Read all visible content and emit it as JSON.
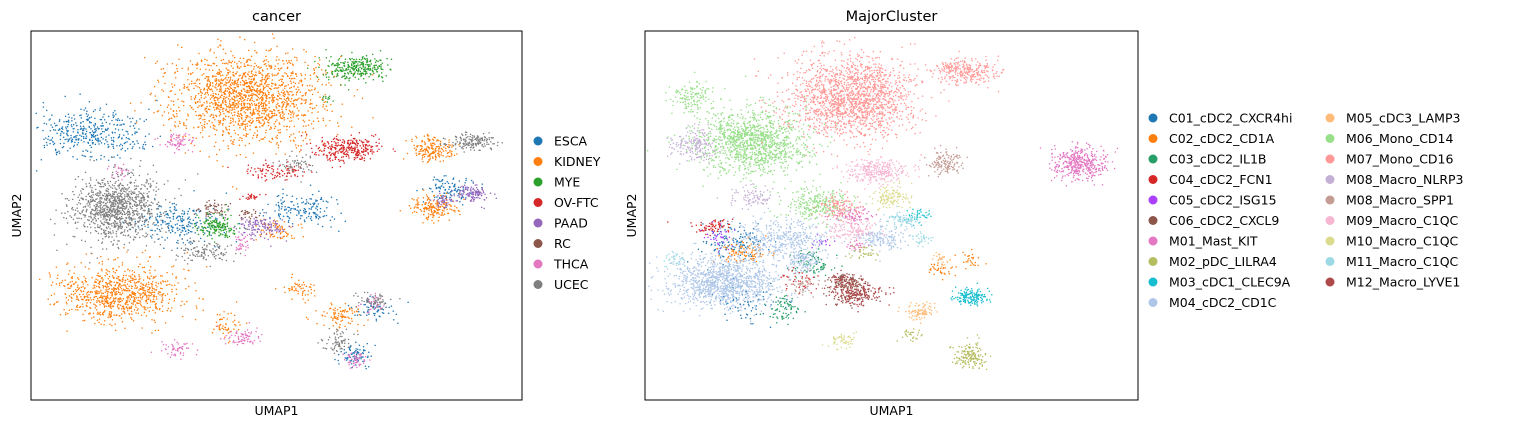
{
  "chart_data": [
    {
      "type": "scatter",
      "title": "cancer",
      "xlabel": "UMAP1",
      "ylabel": "UMAP2",
      "xlim": [
        0,
        100
      ],
      "ylim": [
        0,
        100
      ],
      "grid": false,
      "legend_position": "right",
      "legend_columns": 1,
      "series": [
        {
          "name": "ESCA",
          "color": "#1f77b4",
          "blobs": [
            [
              12,
              72,
              10,
              6,
              900
            ],
            [
              30,
              48,
              8,
              5,
              500
            ],
            [
              85,
              57,
              4,
              3,
              250
            ],
            [
              66,
              12,
              3,
              3,
              180
            ],
            [
              56,
              52,
              6,
              4,
              350
            ],
            [
              70,
              25,
              4,
              3,
              150
            ]
          ]
        },
        {
          "name": "KIDNEY",
          "color": "#ff7f0e",
          "blobs": [
            [
              44,
              82,
              14,
              11,
              3600
            ],
            [
              18,
              29,
              11,
              7,
              1900
            ],
            [
              82,
              52,
              4,
              3,
              380
            ],
            [
              82,
              68,
              4,
              3,
              400
            ],
            [
              50,
              46,
              4,
              3,
              150
            ],
            [
              55,
              30,
              3,
              3,
              120
            ],
            [
              63,
              23,
              4,
              3,
              200
            ],
            [
              40,
              20,
              3,
              3,
              120
            ]
          ]
        },
        {
          "name": "MYE",
          "color": "#2ca02c",
          "blobs": [
            [
              66,
              90,
              6,
              3,
              650
            ],
            [
              38,
              47,
              4,
              3,
              380
            ],
            [
              60,
              82,
              1,
              1,
              25
            ]
          ]
        },
        {
          "name": "OV-FTC",
          "color": "#d62728",
          "blobs": [
            [
              64,
              68,
              6,
              3,
              650
            ],
            [
              50,
              62,
              6,
              2,
              220
            ],
            [
              45,
              55,
              2,
              1,
              60
            ]
          ]
        },
        {
          "name": "PAAD",
          "color": "#9467bd",
          "blobs": [
            [
              90,
              56,
              3,
              2,
              250
            ],
            [
              47,
              47,
              5,
              3,
              300
            ],
            [
              84,
              54,
              2,
              2,
              90
            ]
          ]
        },
        {
          "name": "RC",
          "color": "#8c564b",
          "blobs": [
            [
              37,
              52,
              3,
              2,
              120
            ],
            [
              44,
              50,
              2,
              2,
              60
            ]
          ]
        },
        {
          "name": "THCA",
          "color": "#e377c2",
          "blobs": [
            [
              30,
              70,
              3,
              2,
              160
            ],
            [
              43,
              17,
              3,
              2,
              160
            ],
            [
              66,
              11,
              2,
              2,
              120
            ],
            [
              70,
              26,
              2,
              2,
              80
            ],
            [
              30,
              14,
              3,
              2,
              120
            ],
            [
              43,
              42,
              2,
              3,
              80
            ],
            [
              18,
              62,
              2,
              2,
              60
            ]
          ]
        },
        {
          "name": "UCEC",
          "color": "#7f7f7f",
          "blobs": [
            [
              17,
              52,
              8,
              8,
              2300
            ],
            [
              90,
              70,
              4,
              2,
              350
            ],
            [
              70,
              27,
              3,
              2,
              120
            ],
            [
              35,
              40,
              5,
              3,
              250
            ],
            [
              54,
              64,
              3,
              2,
              120
            ],
            [
              62,
              16,
              3,
              3,
              150
            ]
          ]
        }
      ]
    },
    {
      "type": "scatter",
      "title": "MajorCluster",
      "xlabel": "UMAP1",
      "ylabel": "UMAP2",
      "xlim": [
        0,
        100
      ],
      "ylim": [
        0,
        100
      ],
      "grid": false,
      "legend_position": "right",
      "legend_columns": 2,
      "series": [
        {
          "name": "C01_cDC2_CXCR4hi",
          "color": "#1f77b4",
          "blobs": [
            [
              18,
              43,
              6,
              4,
              300
            ],
            [
              21,
              26,
              6,
              4,
              150
            ]
          ]
        },
        {
          "name": "C02_cDC2_CD1A",
          "color": "#ff7f0e",
          "blobs": [
            [
              20,
              40,
              5,
              3,
              200
            ],
            [
              60,
              35,
              3,
              2,
              80
            ],
            [
              66,
              38,
              2,
              2,
              60
            ]
          ]
        },
        {
          "name": "C03_cDC2_IL1B",
          "color": "#279e68",
          "blobs": [
            [
              28,
              25,
              3,
              3,
              160
            ],
            [
              34,
              37,
              4,
              3,
              180
            ]
          ]
        },
        {
          "name": "C04_cDC2_FCN1",
          "color": "#d62728",
          "blobs": [
            [
              14,
              47,
              4,
              2,
              150
            ],
            [
              31,
              33,
              3,
              3,
              90
            ]
          ]
        },
        {
          "name": "C05_cDC2_ISG15",
          "color": "#aa40fc",
          "blobs": [
            [
              15,
              44,
              3,
              3,
              80
            ],
            [
              36,
              43,
              2,
              2,
              40
            ]
          ]
        },
        {
          "name": "C06_cDC2_CXCL9",
          "color": "#8c564b",
          "blobs": [
            [
              41,
              32,
              3,
              2,
              250
            ],
            [
              42,
              28,
              4,
              2,
              120
            ]
          ]
        },
        {
          "name": "M01_Mast_KIT",
          "color": "#e377c2",
          "blobs": [
            [
              88,
              64,
              5,
              4,
              900
            ],
            [
              42,
              50,
              4,
              2,
              200
            ],
            [
              43,
              42,
              2,
              2,
              60
            ]
          ]
        },
        {
          "name": "M02_pDC_LILRA4",
          "color": "#b5bd61",
          "blobs": [
            [
              66,
              12,
              3,
              3,
              350
            ],
            [
              44,
              40,
              3,
              2,
              80
            ],
            [
              54,
              18,
              2,
              2,
              60
            ]
          ]
        },
        {
          "name": "M03_cDC1_CLEC9A",
          "color": "#17becf",
          "blobs": [
            [
              66,
              28,
              3,
              2,
              350
            ],
            [
              55,
              50,
              3,
              2,
              80
            ]
          ]
        },
        {
          "name": "M04_cDC2_CD1C",
          "color": "#aec7e8",
          "blobs": [
            [
              16,
              32,
              10,
              6,
              2600
            ],
            [
              28,
              44,
              8,
              5,
              900
            ],
            [
              48,
              44,
              5,
              3,
              350
            ],
            [
              32,
              38,
              4,
              3,
              300
            ]
          ]
        },
        {
          "name": "M05_cDC3_LAMP3",
          "color": "#ffbb78",
          "blobs": [
            [
              56,
              24,
              3,
              2,
              200
            ],
            [
              60,
              38,
              2,
              2,
              60
            ]
          ]
        },
        {
          "name": "M06_Mono_CD14",
          "color": "#98df8a",
          "blobs": [
            [
              22,
              70,
              10,
              8,
              2800
            ],
            [
              10,
              82,
              4,
              4,
              300
            ],
            [
              35,
              53,
              6,
              4,
              600
            ]
          ]
        },
        {
          "name": "M07_Mono_CD16",
          "color": "#ff9896",
          "blobs": [
            [
              42,
              82,
              12,
              10,
              3800
            ],
            [
              65,
              89,
              6,
              3,
              650
            ],
            [
              40,
              52,
              4,
              3,
              250
            ]
          ]
        },
        {
          "name": "M08_Macro_NLRP3",
          "color": "#c5b0d5",
          "blobs": [
            [
              10,
              69,
              4,
              4,
              400
            ],
            [
              22,
              55,
              4,
              3,
              200
            ]
          ]
        },
        {
          "name": "M08_Macro_SPP1",
          "color": "#c49c94",
          "blobs": [
            [
              61,
              64,
              3,
              3,
              300
            ],
            [
              32,
              31,
              3,
              2,
              120
            ]
          ]
        },
        {
          "name": "M09_Macro_C1QC",
          "color": "#f7b6d2",
          "blobs": [
            [
              47,
              62,
              6,
              3,
              650
            ],
            [
              42,
              46,
              5,
              3,
              300
            ]
          ]
        },
        {
          "name": "M10_Macro_C1QC",
          "color": "#dbdb8d",
          "blobs": [
            [
              50,
              55,
              4,
              3,
              280
            ],
            [
              40,
              16,
              3,
              2,
              120
            ]
          ]
        },
        {
          "name": "M11_Macro_C1QC",
          "color": "#9edae5",
          "blobs": [
            [
              52,
              49,
              3,
              2,
              200
            ],
            [
              6,
              38,
              2,
              2,
              80
            ],
            [
              56,
              44,
              2,
              2,
              80
            ]
          ]
        },
        {
          "name": "M12_Macro_LYVE1",
          "color": "#ad494a",
          "blobs": [
            [
              43,
              29,
              5,
              3,
              480
            ],
            [
              40,
              33,
              2,
              2,
              80
            ]
          ]
        }
      ]
    }
  ]
}
